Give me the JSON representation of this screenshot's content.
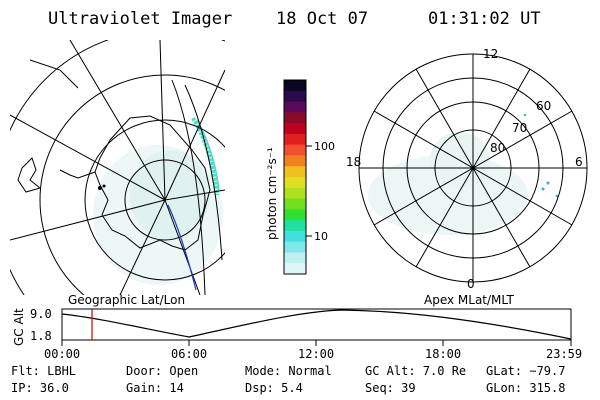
{
  "header": {
    "title": "Ultraviolet Imager",
    "date": "18 Oct 07",
    "time": "01:31:02 UT"
  },
  "colorbar": {
    "unit_label": "photon cm⁻²s⁻¹",
    "ticks": [
      "100",
      "10"
    ],
    "colors": [
      "#0a0520",
      "#2a0a4a",
      "#5a0a5a",
      "#8a0a2a",
      "#c00020",
      "#e02020",
      "#f05030",
      "#f08020",
      "#f0c020",
      "#e0e020",
      "#b0e020",
      "#70e020",
      "#30e030",
      "#20e0a0",
      "#40e0e0",
      "#80e8e8",
      "#c0f0f0",
      "#dff6f6"
    ]
  },
  "left_map": {
    "label": "Geographic Lat/Lon"
  },
  "right_map": {
    "label": "Apex MLat/MLT",
    "mlt_labels": {
      "top": "12",
      "left": "18",
      "right": "6",
      "bottom": "0"
    },
    "lat_labels": [
      "60",
      "70",
      "80"
    ]
  },
  "altitude_plot": {
    "ylabel": "GC Alt",
    "yticks": [
      "9.0",
      "1.8"
    ],
    "xticks": [
      "00:00",
      "06:00",
      "12:00",
      "18:00",
      "23:59"
    ]
  },
  "info": {
    "flt": "Flt: LBHL",
    "ip": "IP: 36.0",
    "door": "Door: Open",
    "gain": "Gain: 14",
    "mode": "Mode: Normal",
    "dsp": "Dsp:    5.4",
    "gc_alt": "GC Alt: 7.0 Re",
    "seq": "Seq: 39",
    "glat": "GLat: −79.7",
    "glon": "GLon: 315.8"
  }
}
